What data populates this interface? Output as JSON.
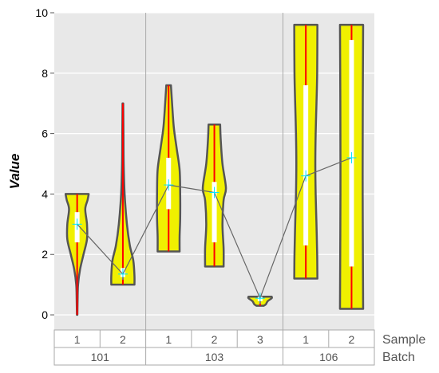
{
  "chart_data": {
    "type": "violin",
    "ylabel": "Value",
    "ylim": [
      -0.5,
      10
    ],
    "yticks": [
      0,
      2,
      4,
      6,
      8,
      10
    ],
    "grid": true,
    "row_labels": {
      "sample": "Sample",
      "batch": "Batch"
    },
    "batches": [
      {
        "label": "101",
        "samples": [
          {
            "label": "1",
            "min": 0,
            "max": 4.0,
            "q1": 2.4,
            "q3": 3.4,
            "mean": 3.0,
            "mid": 2.85,
            "profile": [
              [
                0,
                0.02
              ],
              [
                0.5,
                0.04
              ],
              [
                1.0,
                0.08
              ],
              [
                1.5,
                0.25
              ],
              [
                2.0,
                0.55
              ],
              [
                2.5,
                0.85
              ],
              [
                3.0,
                0.85
              ],
              [
                3.5,
                0.7
              ],
              [
                3.8,
                0.9
              ],
              [
                4.0,
                1.0
              ]
            ]
          },
          {
            "label": "2",
            "min": 1.0,
            "max": 7.0,
            "q1": 1.25,
            "q3": 1.55,
            "mean": 1.35,
            "mid": 1.3,
            "profile": [
              [
                1.0,
                1.0
              ],
              [
                1.3,
                1.0
              ],
              [
                1.8,
                0.9
              ],
              [
                2.3,
                0.6
              ],
              [
                3.0,
                0.35
              ],
              [
                4.0,
                0.15
              ],
              [
                5.0,
                0.07
              ],
              [
                6.0,
                0.05
              ],
              [
                7.0,
                0.03
              ]
            ]
          }
        ]
      },
      {
        "label": "103",
        "samples": [
          {
            "label": "1",
            "min": 2.1,
            "max": 7.6,
            "q1": 3.5,
            "q3": 5.2,
            "mean": 4.3,
            "mid": 4.3,
            "profile": [
              [
                2.1,
                0.95
              ],
              [
                2.6,
                0.95
              ],
              [
                3.2,
                1.0
              ],
              [
                4.0,
                1.0
              ],
              [
                4.8,
                0.95
              ],
              [
                5.5,
                0.7
              ],
              [
                6.2,
                0.45
              ],
              [
                7.0,
                0.3
              ],
              [
                7.6,
                0.2
              ]
            ]
          },
          {
            "label": "2",
            "min": 1.6,
            "max": 6.3,
            "q1": 2.4,
            "q3": 4.4,
            "mean": 4.05,
            "mid": 3.7,
            "profile": [
              [
                1.6,
                0.8
              ],
              [
                2.2,
                0.8
              ],
              [
                3.0,
                0.7
              ],
              [
                3.8,
                0.8
              ],
              [
                4.2,
                1.0
              ],
              [
                5.0,
                0.7
              ],
              [
                5.8,
                0.55
              ],
              [
                6.3,
                0.5
              ]
            ]
          },
          {
            "label": "3",
            "min": 0.3,
            "max": 0.6,
            "q1": 0.45,
            "q3": 0.6,
            "mean": 0.55,
            "mid": 0.5,
            "profile": [
              [
                0.3,
                0.3
              ],
              [
                0.35,
                0.5
              ],
              [
                0.45,
                0.65
              ],
              [
                0.55,
                1.0
              ],
              [
                0.6,
                1.0
              ]
            ]
          }
        ]
      },
      {
        "label": "106",
        "samples": [
          {
            "label": "1",
            "min": 1.2,
            "max": 9.6,
            "q1": 2.3,
            "q3": 7.6,
            "mean": 4.6,
            "mid": 5.05,
            "profile": [
              [
                1.2,
                1.0
              ],
              [
                2.0,
                0.98
              ],
              [
                3.0,
                0.92
              ],
              [
                4.0,
                0.85
              ],
              [
                5.0,
                0.82
              ],
              [
                6.0,
                0.85
              ],
              [
                7.0,
                0.92
              ],
              [
                8.0,
                0.98
              ],
              [
                9.6,
                1.0
              ]
            ]
          },
          {
            "label": "2",
            "min": 0.2,
            "max": 9.6,
            "q1": 1.6,
            "q3": 9.1,
            "mean": 5.2,
            "mid": 5.2,
            "profile": [
              [
                0.2,
                1.0
              ],
              [
                2.0,
                0.98
              ],
              [
                4.0,
                0.96
              ],
              [
                5.2,
                0.96
              ],
              [
                7.0,
                0.97
              ],
              [
                9.6,
                1.0
              ]
            ]
          }
        ]
      }
    ],
    "colors": {
      "panel": "#e8e8e8",
      "grid": "#ffffff",
      "violin_fill": "#f0f000",
      "violin_stroke": "#555555",
      "whisker": "#ff0000",
      "box": "#ffffff",
      "mean_marker": "#00e5ff",
      "connect_line": "#666666"
    }
  }
}
